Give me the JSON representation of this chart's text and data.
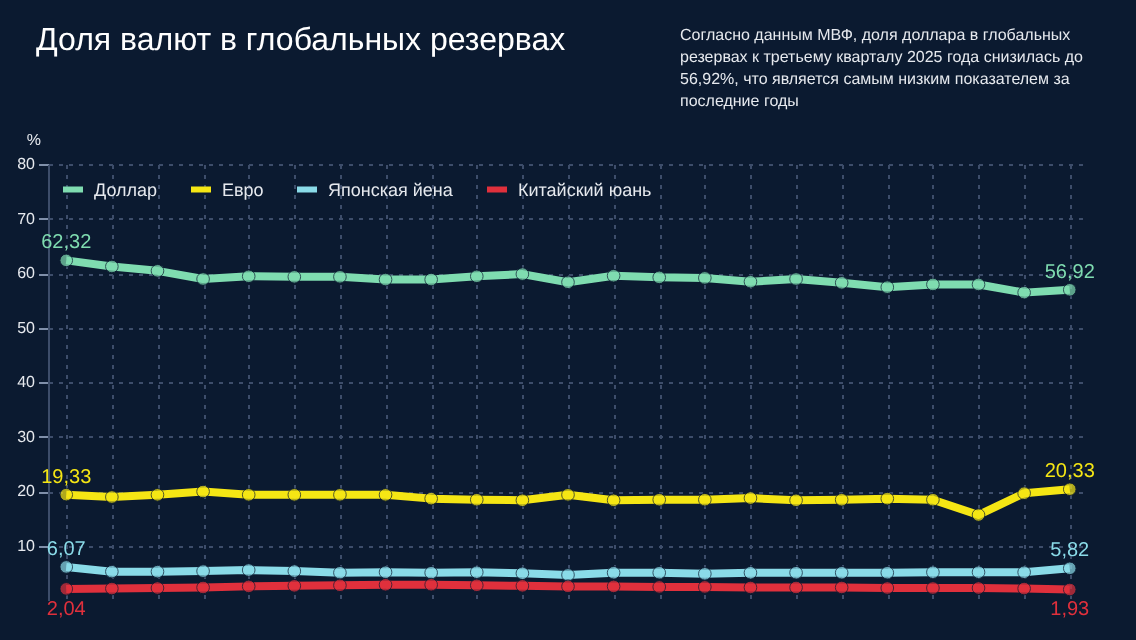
{
  "chart_data": {
    "type": "line",
    "title": "Доля валют в глобальных резервах",
    "annotations": [
      "Согласно данным МВФ, доля доллара в глобальных резервах к третьему кварталу 2025 года снизилась до 56,92%, что является самым низким показателем за последние годы"
    ],
    "ylabel": "%",
    "categories": [
      null,
      null,
      null,
      null,
      null,
      null,
      null,
      null,
      null,
      null,
      null,
      null,
      null,
      null,
      null,
      null,
      null,
      null,
      null,
      null,
      null,
      null,
      null
    ],
    "series": [
      {
        "name": "Доллар",
        "color": "#7fdcb0",
        "values": [
          62.32,
          61.2,
          60.4,
          58.9,
          59.4,
          59.3,
          59.3,
          58.8,
          58.8,
          59.4,
          59.8,
          58.3,
          59.5,
          59.2,
          59.1,
          58.4,
          58.9,
          58.2,
          57.4,
          57.9,
          57.9,
          56.4,
          56.92
        ],
        "value_labels": [
          "62,32",
          null,
          null,
          null,
          null,
          null,
          null,
          null,
          null,
          null,
          null,
          null,
          null,
          null,
          null,
          null,
          null,
          null,
          null,
          null,
          null,
          null,
          "56,92"
        ]
      },
      {
        "name": "Евро",
        "color": "#f5e614",
        "values": [
          19.33,
          18.9,
          19.3,
          19.9,
          19.3,
          19.3,
          19.3,
          19.3,
          18.6,
          18.4,
          18.3,
          19.3,
          18.3,
          18.4,
          18.4,
          18.7,
          18.3,
          18.4,
          18.6,
          18.4,
          15.6,
          19.6,
          20.33
        ],
        "value_labels": [
          "19,33",
          null,
          null,
          null,
          null,
          null,
          null,
          null,
          null,
          null,
          null,
          null,
          null,
          null,
          null,
          null,
          null,
          null,
          null,
          null,
          null,
          null,
          "20,33"
        ]
      },
      {
        "name": "Японская йена",
        "color": "#8adbe8",
        "values": [
          6.07,
          5.2,
          5.2,
          5.3,
          5.5,
          5.3,
          5.0,
          5.1,
          5.0,
          5.1,
          4.9,
          4.6,
          5.0,
          5.0,
          4.8,
          5.0,
          5.0,
          5.0,
          5.0,
          5.1,
          5.1,
          5.1,
          5.82
        ],
        "value_labels": [
          "6,07",
          null,
          null,
          null,
          null,
          null,
          null,
          null,
          null,
          null,
          null,
          null,
          null,
          null,
          null,
          null,
          null,
          null,
          null,
          null,
          null,
          null,
          "5,82"
        ]
      },
      {
        "name": "Китайский юань",
        "color": "#e0303c",
        "values": [
          2.04,
          2.1,
          2.2,
          2.3,
          2.5,
          2.6,
          2.7,
          2.8,
          2.8,
          2.7,
          2.6,
          2.5,
          2.5,
          2.4,
          2.4,
          2.3,
          2.3,
          2.3,
          2.2,
          2.2,
          2.2,
          2.1,
          1.93
        ],
        "value_labels": [
          "2,04",
          null,
          null,
          null,
          null,
          null,
          null,
          null,
          null,
          null,
          null,
          null,
          null,
          null,
          null,
          null,
          null,
          null,
          null,
          null,
          null,
          null,
          "1,93"
        ]
      }
    ],
    "ylim": [
      0,
      80
    ],
    "yticks": [
      10,
      20,
      30,
      40,
      50,
      60,
      70,
      80
    ],
    "tick_labels": "y",
    "grid": true,
    "legend": "top left",
    "marker": "circle",
    "line_style": "solid"
  }
}
